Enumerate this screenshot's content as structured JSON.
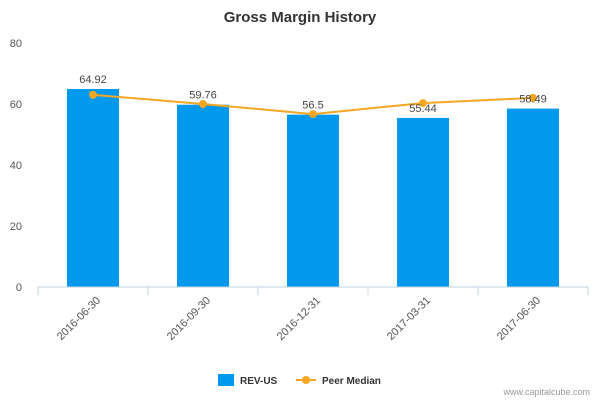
{
  "chart_data": {
    "type": "bar",
    "title": "Gross Margin History",
    "categories": [
      "2016-06-30",
      "2016-09-30",
      "2016-12-31",
      "2017-03-31",
      "2017-06-30"
    ],
    "series": [
      {
        "name": "REV-US",
        "type": "bar",
        "color": "#0099ee",
        "values": [
          64.92,
          59.76,
          56.5,
          55.44,
          58.49
        ],
        "labels": [
          "64.92",
          "59.76",
          "56.5",
          "55.44",
          "58.49"
        ]
      },
      {
        "name": "Peer Median",
        "type": "line",
        "color": "#f5a623",
        "values": [
          63.0,
          60.0,
          56.7,
          60.3,
          62.0
        ]
      }
    ],
    "ylim": [
      0,
      80
    ],
    "yticks": [
      0,
      20,
      40,
      60,
      80
    ],
    "grid": false,
    "legend": "bottom-center"
  },
  "credit": "www.capitalcube.com"
}
